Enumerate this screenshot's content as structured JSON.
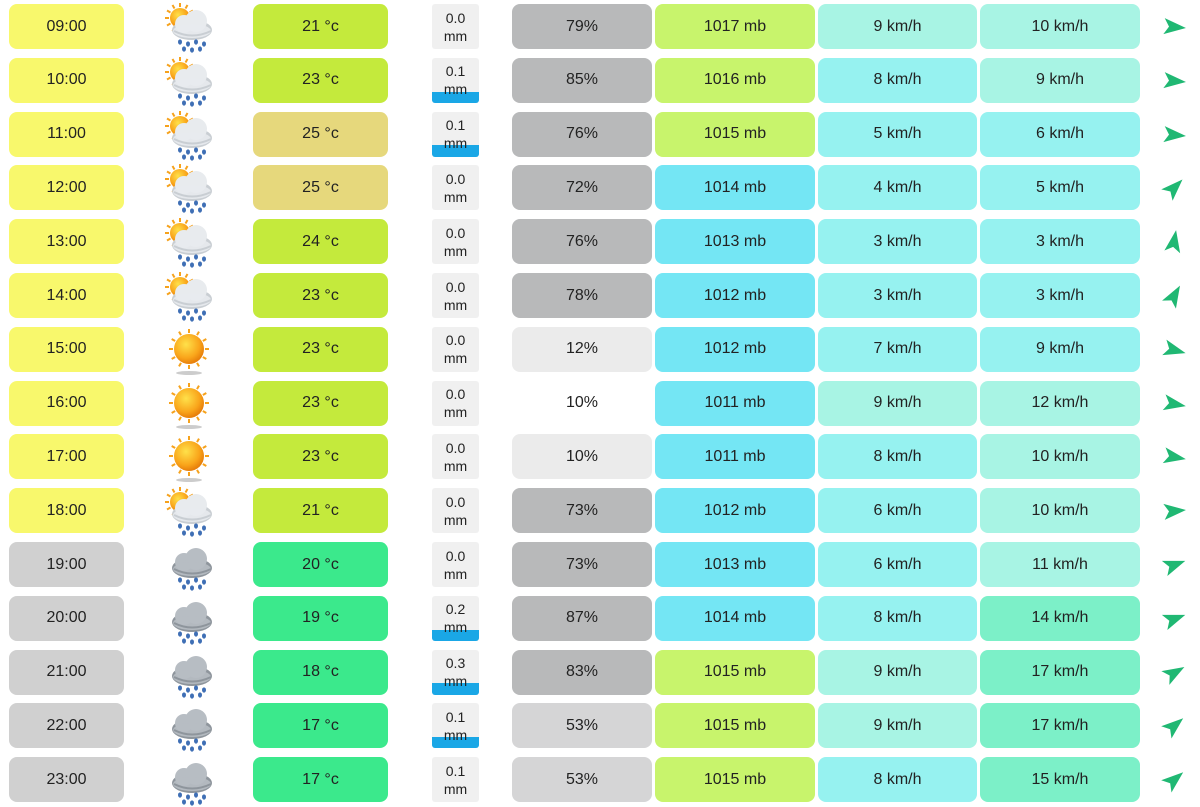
{
  "units": {
    "temp": " °c",
    "precip": "mm",
    "pressure": " mb",
    "speed": " km/h",
    "humidity": "%"
  },
  "colors": {
    "time_day": "#f8f86c",
    "time_night": "#d0d0d0",
    "temp_21": "#c4ea3c",
    "temp_23": "#c4ea3c",
    "temp_24": "#c4ea3c",
    "temp_25": "#e6d87c",
    "temp_20": "#3be98c",
    "temp_19": "#3be98c",
    "temp_18": "#3be98c",
    "temp_17": "#3be98c",
    "precip_bar": "#1aa7e6",
    "arrow": "#20b873",
    "press_green": "#c8f46c",
    "press_blue": "#74e6f4",
    "wind_light": "#a8f4e4",
    "wind_cyan": "#96f2f0",
    "wind_mint": "#7cf0c8"
  },
  "rows": [
    {
      "time": "09:00",
      "period": "day",
      "icon": "sun-cloud-rain-icon",
      "temp": "21 °c",
      "temp_color": "#c4ea3c",
      "precip": "0.0",
      "precip_level": 0,
      "humidity": "79%",
      "hum_color": "#b8b9ba",
      "pressure": "1017 mb",
      "press_color": "#c8f46c",
      "wind": "9 km/h",
      "wind_color": "#a8f4e4",
      "gust": "10 km/h",
      "gust_color": "#a8f4e4",
      "dir_deg": 95
    },
    {
      "time": "10:00",
      "period": "day",
      "icon": "sun-cloud-rain-icon",
      "temp": "23 °c",
      "temp_color": "#c4ea3c",
      "precip": "0.1",
      "precip_level": 0.25,
      "humidity": "85%",
      "hum_color": "#b8b9ba",
      "pressure": "1016 mb",
      "press_color": "#c8f46c",
      "wind": "8 km/h",
      "wind_color": "#96f2f0",
      "gust": "9 km/h",
      "gust_color": "#a8f4e4",
      "dir_deg": 95
    },
    {
      "time": "11:00",
      "period": "day",
      "icon": "sun-cloud-rain-icon",
      "temp": "25 °c",
      "temp_color": "#e6d87c",
      "precip": "0.1",
      "precip_level": 0.25,
      "humidity": "76%",
      "hum_color": "#b8b9ba",
      "pressure": "1015 mb",
      "press_color": "#c8f46c",
      "wind": "5 km/h",
      "wind_color": "#96f2f0",
      "gust": "6 km/h",
      "gust_color": "#96f2f0",
      "dir_deg": 95
    },
    {
      "time": "12:00",
      "period": "day",
      "icon": "sun-cloud-rain-icon",
      "temp": "25 °c",
      "temp_color": "#e6d87c",
      "precip": "0.0",
      "precip_level": 0,
      "humidity": "72%",
      "hum_color": "#b8b9ba",
      "pressure": "1014 mb",
      "press_color": "#74e6f4",
      "wind": "4 km/h",
      "wind_color": "#96f2f0",
      "gust": "5 km/h",
      "gust_color": "#96f2f0",
      "dir_deg": 45
    },
    {
      "time": "13:00",
      "period": "day",
      "icon": "sun-cloud-rain-icon",
      "temp": "24 °c",
      "temp_color": "#c4ea3c",
      "precip": "0.0",
      "precip_level": 0,
      "humidity": "76%",
      "hum_color": "#b8b9ba",
      "pressure": "1013 mb",
      "press_color": "#74e6f4",
      "wind": "3 km/h",
      "wind_color": "#96f2f0",
      "gust": "3 km/h",
      "gust_color": "#96f2f0",
      "dir_deg": 10
    },
    {
      "time": "14:00",
      "period": "day",
      "icon": "sun-cloud-rain-icon",
      "temp": "23 °c",
      "temp_color": "#c4ea3c",
      "precip": "0.0",
      "precip_level": 0,
      "humidity": "78%",
      "hum_color": "#b8b9ba",
      "pressure": "1012 mb",
      "press_color": "#74e6f4",
      "wind": "3 km/h",
      "wind_color": "#96f2f0",
      "gust": "3 km/h",
      "gust_color": "#96f2f0",
      "dir_deg": 30
    },
    {
      "time": "15:00",
      "period": "day",
      "icon": "sun-icon",
      "temp": "23 °c",
      "temp_color": "#c4ea3c",
      "precip": "0.0",
      "precip_level": 0,
      "humidity": "12%",
      "hum_color": "#ebebeb",
      "pressure": "1012 mb",
      "press_color": "#74e6f4",
      "wind": "7 km/h",
      "wind_color": "#96f2f0",
      "gust": "9 km/h",
      "gust_color": "#96f2f0",
      "dir_deg": 105
    },
    {
      "time": "16:00",
      "period": "day",
      "icon": "sun-icon",
      "temp": "23 °c",
      "temp_color": "#c4ea3c",
      "precip": "0.0",
      "precip_level": 0,
      "humidity": "10%",
      "hum_color": "#ffffff",
      "pressure": "1011 mb",
      "press_color": "#74e6f4",
      "wind": "9 km/h",
      "wind_color": "#a8f4e4",
      "gust": "12 km/h",
      "gust_color": "#a8f4e4",
      "dir_deg": 100
    },
    {
      "time": "17:00",
      "period": "day",
      "icon": "sun-icon",
      "temp": "23 °c",
      "temp_color": "#c4ea3c",
      "precip": "0.0",
      "precip_level": 0,
      "humidity": "10%",
      "hum_color": "#ebebeb",
      "pressure": "1011 mb",
      "press_color": "#74e6f4",
      "wind": "8 km/h",
      "wind_color": "#96f2f0",
      "gust": "10 km/h",
      "gust_color": "#a8f4e4",
      "dir_deg": 100
    },
    {
      "time": "18:00",
      "period": "day",
      "icon": "sun-cloud-rain-icon",
      "temp": "21 °c",
      "temp_color": "#c4ea3c",
      "precip": "0.0",
      "precip_level": 0,
      "humidity": "73%",
      "hum_color": "#b8b9ba",
      "pressure": "1012 mb",
      "press_color": "#74e6f4",
      "wind": "6 km/h",
      "wind_color": "#96f2f0",
      "gust": "10 km/h",
      "gust_color": "#a8f4e4",
      "dir_deg": 85
    },
    {
      "time": "19:00",
      "period": "night",
      "icon": "cloud-rain-icon",
      "temp": "20 °c",
      "temp_color": "#3be98c",
      "precip": "0.0",
      "precip_level": 0,
      "humidity": "73%",
      "hum_color": "#b8b9ba",
      "pressure": "1013 mb",
      "press_color": "#74e6f4",
      "wind": "6 km/h",
      "wind_color": "#96f2f0",
      "gust": "11 km/h",
      "gust_color": "#a8f4e4",
      "dir_deg": 70
    },
    {
      "time": "20:00",
      "period": "night",
      "icon": "cloud-rain-icon",
      "temp": "19 °c",
      "temp_color": "#3be98c",
      "precip": "0.2",
      "precip_level": 0.25,
      "humidity": "87%",
      "hum_color": "#b8b9ba",
      "pressure": "1014 mb",
      "press_color": "#74e6f4",
      "wind": "8 km/h",
      "wind_color": "#96f2f0",
      "gust": "14 km/h",
      "gust_color": "#7cf0c8",
      "dir_deg": 70
    },
    {
      "time": "21:00",
      "period": "night",
      "icon": "cloud-rain-icon",
      "temp": "18 °c",
      "temp_color": "#3be98c",
      "precip": "0.3",
      "precip_level": 0.25,
      "humidity": "83%",
      "hum_color": "#b8b9ba",
      "pressure": "1015 mb",
      "press_color": "#c8f46c",
      "wind": "9 km/h",
      "wind_color": "#a8f4e4",
      "gust": "17 km/h",
      "gust_color": "#7cf0c8",
      "dir_deg": 60
    },
    {
      "time": "22:00",
      "period": "night",
      "icon": "cloud-rain-icon",
      "temp": "17 °c",
      "temp_color": "#3be98c",
      "precip": "0.1",
      "precip_level": 0.25,
      "humidity": "53%",
      "hum_color": "#d5d5d6",
      "pressure": "1015 mb",
      "press_color": "#c8f46c",
      "wind": "9 km/h",
      "wind_color": "#a8f4e4",
      "gust": "17 km/h",
      "gust_color": "#7cf0c8",
      "dir_deg": 50
    },
    {
      "time": "23:00",
      "period": "night",
      "icon": "cloud-rain-icon",
      "temp": "17 °c",
      "temp_color": "#3be98c",
      "precip": "0.1",
      "precip_level": 0,
      "humidity": "53%",
      "hum_color": "#d5d5d6",
      "pressure": "1015 mb",
      "press_color": "#c8f46c",
      "wind": "8 km/h",
      "wind_color": "#96f2f0",
      "gust": "15 km/h",
      "gust_color": "#7cf0c8",
      "dir_deg": 50
    }
  ]
}
